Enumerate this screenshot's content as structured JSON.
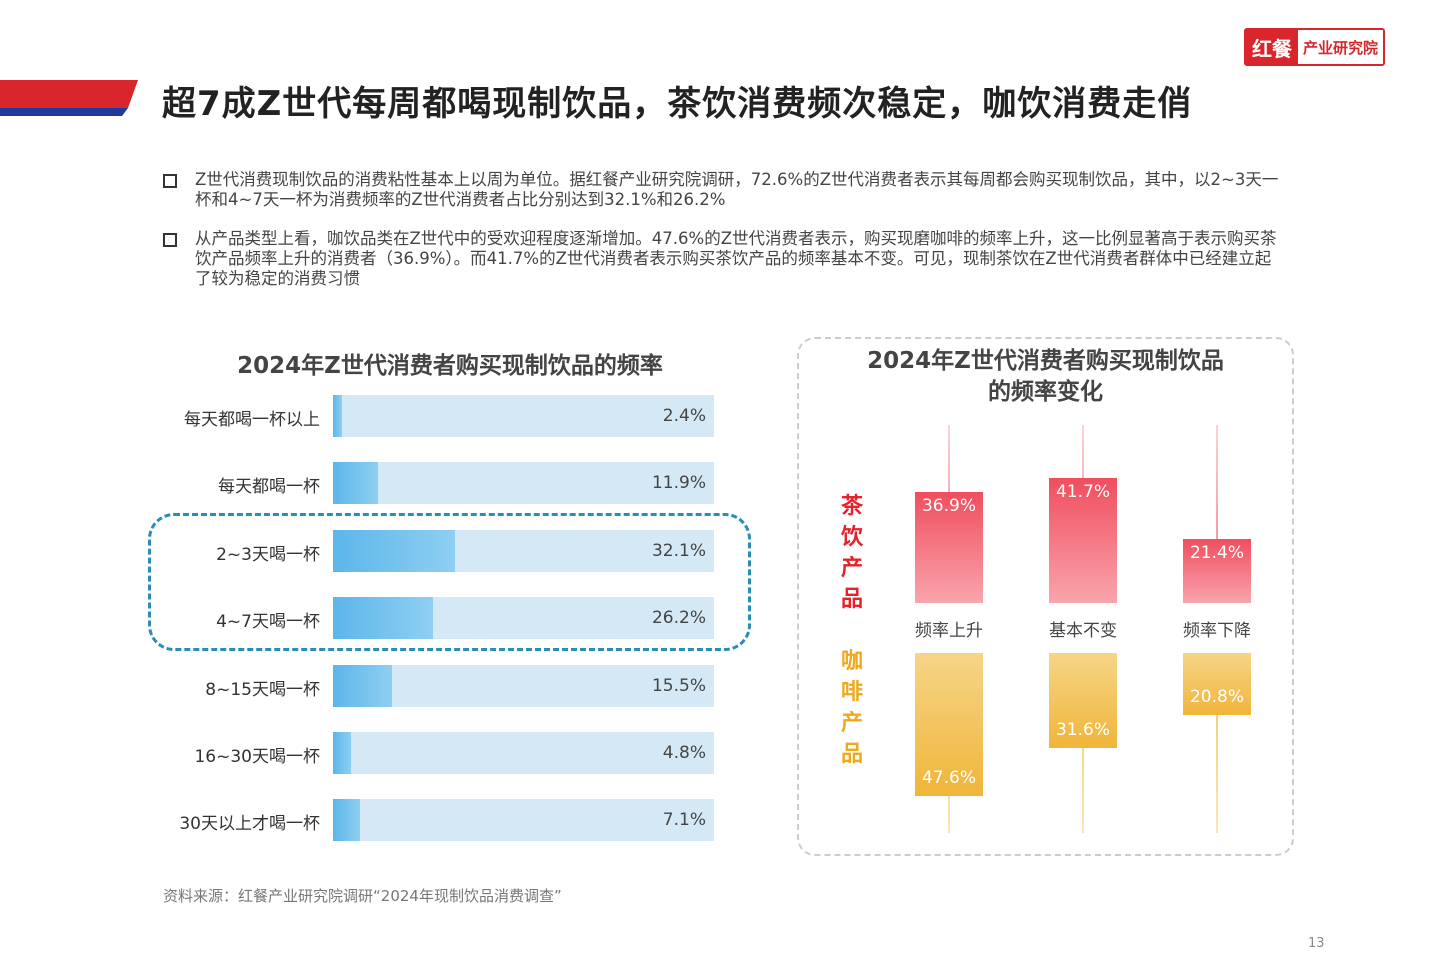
{
  "header": {
    "title": "超7成Z世代每周都喝现制饮品，茶饮消费频次稳定，咖饮消费走俏",
    "logo_mark": "红餐",
    "logo_text": "产业研究院"
  },
  "bullets": [
    "Z世代消费现制饮品的消费粘性基本上以周为单位。据红餐产业研究院调研，72.6%的Z世代消费者表示其每周都会购买现制饮品，其中，以2~3天一杯和4~7天一杯为消费频率的Z世代消费者占比分别达到32.1%和26.2%",
    "从产品类型上看，咖饮品类在Z世代中的受欢迎程度逐渐增加。47.6%的Z世代消费者表示，购买现磨咖啡的频率上升，这一比例显著高于表示购买茶饮产品频率上升的消费者（36.9%）。而41.7%的Z世代消费者表示购买茶饮产品的频率基本不变。可见，现制茶饮在Z世代消费者群体中已经建立起了较为稳定的消费习惯"
  ],
  "colors": {
    "brand_red": "#d9252c",
    "bar_blue": "#5cb6e9",
    "bar_bg": "#d4e9f5",
    "tea_red": "#f25a68",
    "coffee_orange": "#f0b53a",
    "highlight_border": "#2a8db6"
  },
  "chart_data": [
    {
      "type": "bar",
      "orientation": "horizontal",
      "title": "2024年Z世代消费者购买现制饮品的频率",
      "categories": [
        "每天都喝一杯以上",
        "每天都喝一杯",
        "2~3天喝一杯",
        "4~7天喝一杯",
        "8~15天喝一杯",
        "16~30天喝一杯",
        "30天以上才喝一杯"
      ],
      "values": [
        2.4,
        11.9,
        32.1,
        26.2,
        15.5,
        4.8,
        7.1
      ],
      "value_labels": [
        "2.4%",
        "11.9%",
        "32.1%",
        "26.2%",
        "15.5%",
        "4.8%",
        "7.1%"
      ],
      "xlim": [
        0,
        100
      ],
      "highlighted": [
        "2~3天喝一杯",
        "4~7天喝一杯"
      ]
    },
    {
      "type": "bar",
      "orientation": "diverging",
      "title": "2024年Z世代消费者购买现制饮品的频率变化",
      "categories": [
        "频率上升",
        "基本不变",
        "频率下降"
      ],
      "series": [
        {
          "name": "茶饮产品",
          "values": [
            36.9,
            41.7,
            21.4
          ],
          "value_labels": [
            "36.9%",
            "41.7%",
            "21.4%"
          ]
        },
        {
          "name": "咖啡产品",
          "values": [
            47.6,
            31.6,
            20.8
          ],
          "value_labels": [
            "47.6%",
            "31.6%",
            "20.8%"
          ]
        }
      ]
    }
  ],
  "footer": {
    "source": "资料来源：红餐产业研究院调研“2024年现制饮品消费调查”",
    "page": "13"
  }
}
